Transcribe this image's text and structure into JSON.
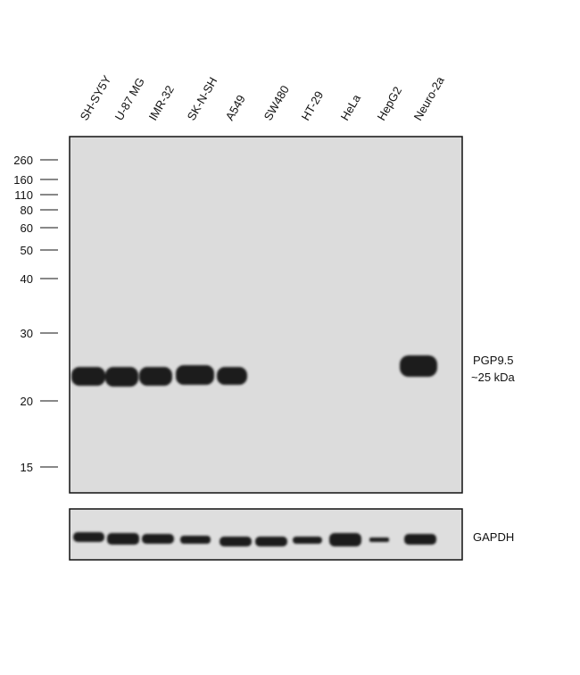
{
  "lanes": [
    "SH-SY5Y",
    "U-87 MG",
    "IMR-32",
    "SK-N-SH",
    "A549",
    "SW480",
    "HT-29",
    "HeLa",
    "HepG2",
    "Neuro-2a"
  ],
  "markers": [
    260,
    160,
    110,
    80,
    60,
    50,
    40,
    30,
    20,
    15
  ],
  "main_blot": {
    "label": [
      "PGP9.5",
      "~25 kDa"
    ]
  },
  "loading_control": {
    "label": "GAPDH"
  }
}
